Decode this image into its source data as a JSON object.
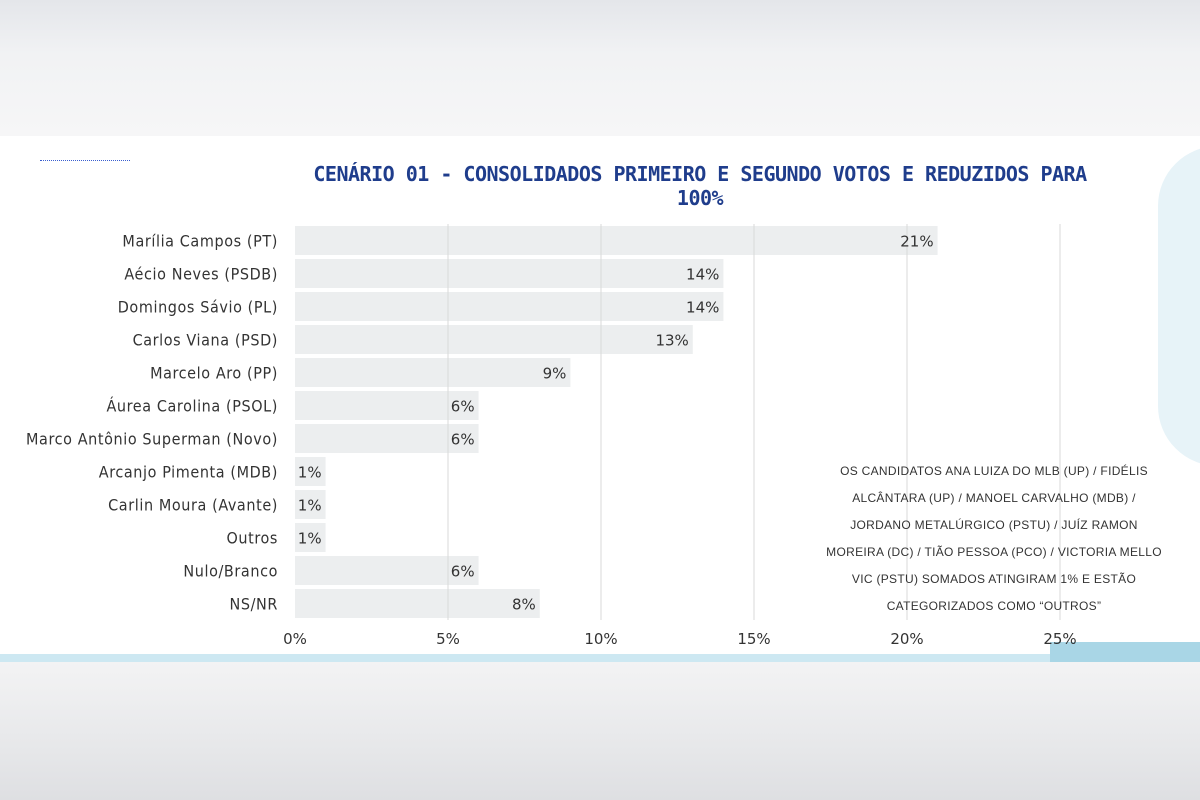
{
  "chart_data": {
    "type": "bar",
    "orientation": "horizontal",
    "title": "CENÁRIO 01 - CONSOLIDADOS PRIMEIRO E SEGUNDO VOTOS E REDUZIDOS PARA 100%",
    "categories": [
      "Marília Campos (PT)",
      "Aécio Neves (PSDB)",
      "Domingos Sávio (PL)",
      "Carlos Viana (PSD)",
      "Marcelo Aro (PP)",
      "Áurea Carolina (PSOL)",
      "Marco Antônio Superman (Novo)",
      "Arcanjo Pimenta (MDB)",
      "Carlin Moura (Avante)",
      "Outros",
      "Nulo/Branco",
      "NS/NR"
    ],
    "values": [
      21,
      14,
      14,
      13,
      9,
      6,
      6,
      1,
      1,
      1,
      6,
      8
    ],
    "value_labels": [
      "21%",
      "14%",
      "14%",
      "13%",
      "9%",
      "6%",
      "6%",
      "1%",
      "1%",
      "1%",
      "6%",
      "8%"
    ],
    "xlim": [
      0,
      25
    ],
    "xticks": [
      0,
      5,
      10,
      15,
      20,
      25
    ],
    "xtick_labels": [
      "0%",
      "5%",
      "10%",
      "15%",
      "20%",
      "25%"
    ],
    "xlabel": "",
    "ylabel": "",
    "grid": "vertical",
    "legend": "none",
    "colors": {
      "bar": "#eceeef",
      "grid": "#d9d9d9",
      "title": "#1f3d8c",
      "text": "#333333"
    }
  },
  "note": {
    "text": "OS CANDIDATOS ANA LUIZA DO MLB (UP) / FIDÉLIS ALCÂNTARA (UP) / MANOEL CARVALHO (MDB) / JORDANO METALÚRGICO (PSTU) / JUÍZ RAMON MOREIRA (DC) / TIÃO PESSOA (PCO) / VICTORIA MELLO VIC (PSTU) SOMADOS ATINGIRAM 1% E ESTÃO CATEGORIZADOS COMO “OUTROS”"
  }
}
